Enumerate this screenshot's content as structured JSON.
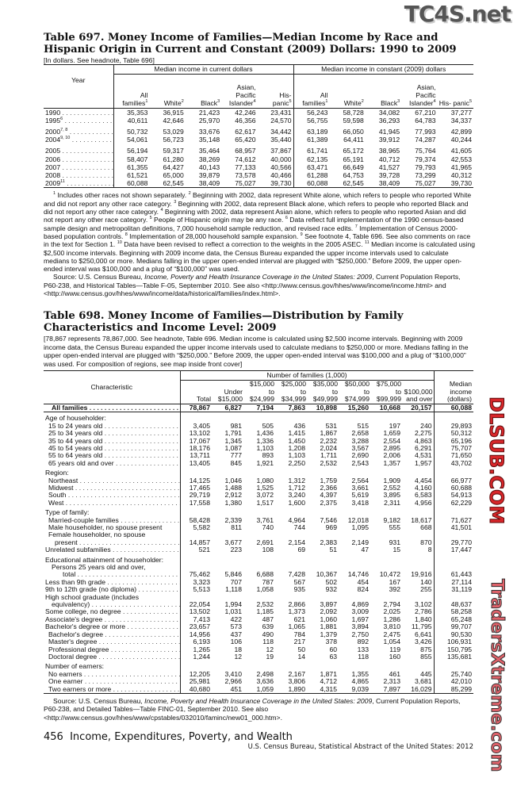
{
  "watermarks": {
    "top": "TC4S.net",
    "middle": "DLSUB.COM",
    "bottom": "TradersXtreme.com"
  },
  "t697": {
    "title": "Table 697. Money Income of Families—Median Income by Race and Hispanic Origin in Current and Constant (2009) Dollars: 1990 to 2009",
    "headnote": "[In dollars. See headnote, Table 696]",
    "year_header": "Year",
    "group_current": "Median income in current dollars",
    "group_constant": "Median income in constant (2009) dollars",
    "columns": [
      {
        "label": "All families",
        "sup": "1"
      },
      {
        "label": "White",
        "sup": "2"
      },
      {
        "label": "Black",
        "sup": "3"
      },
      {
        "label": "Asian, Pacific Islander",
        "sup": "4"
      },
      {
        "label": "His- panic",
        "sup": "5"
      },
      {
        "label": "All families",
        "sup": "1"
      },
      {
        "label": "White",
        "sup": "2"
      },
      {
        "label": "Black",
        "sup": "3"
      },
      {
        "label": "Asian, Pacific Islander",
        "sup": "4"
      },
      {
        "label": "His- panic",
        "sup": "5"
      }
    ],
    "rows": [
      {
        "year": "1990",
        "sup": "",
        "values": [
          "35,353",
          "36,915",
          "21,423",
          "42,246",
          "23,431",
          "56,243",
          "58,728",
          "34,082",
          "67,210",
          "37,277"
        ]
      },
      {
        "year": "1995",
        "sup": "6",
        "values": [
          "40,611",
          "42,646",
          "25,970",
          "46,356",
          "24,570",
          "56,755",
          "59,598",
          "36,293",
          "64,783",
          "34,337"
        ]
      },
      {
        "year": "2000",
        "sup": "7, 8",
        "gap": true,
        "values": [
          "50,732",
          "53,029",
          "33,676",
          "62,617",
          "34,442",
          "63,189",
          "66,050",
          "41,945",
          "77,993",
          "42,899"
        ]
      },
      {
        "year": "2004",
        "sup": "9, 10",
        "values": [
          "54,061",
          "56,723",
          "35,148",
          "65,420",
          "35,440",
          "61,389",
          "64,411",
          "39,912",
          "74,287",
          "40,244"
        ]
      },
      {
        "year": "2005",
        "sup": "",
        "gap": true,
        "values": [
          "56,194",
          "59,317",
          "35,464",
          "68,957",
          "37,867",
          "61,741",
          "65,172",
          "38,965",
          "75,764",
          "41,605"
        ]
      },
      {
        "year": "2006",
        "sup": "",
        "values": [
          "58,407",
          "61,280",
          "38,269",
          "74,612",
          "40,000",
          "62,135",
          "65,191",
          "40,712",
          "79,374",
          "42,553"
        ]
      },
      {
        "year": "2007",
        "sup": "",
        "values": [
          "61,355",
          "64,427",
          "40,143",
          "77,133",
          "40,566",
          "63,471",
          "66,649",
          "41,527",
          "79,793",
          "41,965"
        ]
      },
      {
        "year": "2008",
        "sup": "",
        "values": [
          "61,521",
          "65,000",
          "39,879",
          "73,578",
          "40,466",
          "61,288",
          "64,753",
          "39,728",
          "73,299",
          "40,312"
        ]
      },
      {
        "year": "2009",
        "sup": "11",
        "values": [
          "60,088",
          "62,545",
          "38,409",
          "75,027",
          "39,730",
          "60,088",
          "62,545",
          "38,409",
          "75,027",
          "39,730"
        ]
      }
    ],
    "footnotes": [
      {
        "s": "1"
      },
      {
        "t": " Includes other races not shown separately. "
      },
      {
        "s": "2"
      },
      {
        "t": " Beginning with 2002, data represent White alone, which refers to people who reported White and did not report any other race category. "
      },
      {
        "s": "3"
      },
      {
        "t": " Beginning with 2002, data represent Black alone, which refers to people who reported Black and did not report any other race category. "
      },
      {
        "s": "4"
      },
      {
        "t": " Beginning with 2002, data represent Asian alone, which refers to people who reported Asian and did not report any other race category. "
      },
      {
        "s": "5"
      },
      {
        "t": " People of Hispanic origin may be any race. "
      },
      {
        "s": "6"
      },
      {
        "t": " Data reflect full implementation of the 1990 census-based sample design and metropolitan definitions, 7,000 household sample reduction, and revised race edits. "
      },
      {
        "s": "7"
      },
      {
        "t": " Implementation of Census 2000-based population controls. "
      },
      {
        "s": "8"
      },
      {
        "t": " Implementation of 28,000 household sample expansion. "
      },
      {
        "s": "9"
      },
      {
        "t": " See footnote 4, Table 696. See also comments on race in the text for Section 1. "
      },
      {
        "s": "10"
      },
      {
        "t": " Data have been revised to reflect a correction to the weights in the 2005 ASEC. "
      },
      {
        "s": "11"
      },
      {
        "t": " Median income is calculated using $2,500 income intervals. Beginning with 2009 income data, the Census Bureau expanded the upper income intervals used to calculate medians to $250,000 or more. Medians falling in the upper open-ended interval are plugged with “$250,000.” Before 2009, the upper open-ended interval was $100,000 and a plug of “$100,000” was used."
      }
    ],
    "source": [
      {
        "t": "Source: U.S. Census Bureau, "
      },
      {
        "i": "Income, Poverty and Health Insurance Coverage in the United States: 2009"
      },
      {
        "t": ", Current Population Reports,  P60-238, and Historical Tables—Table F-05, September 2010. See also <http://www.census.gov/hhes/www/income/income.html> and <http://www.census.gov/hhes/www/income/data/historical/families/index.html>."
      }
    ]
  },
  "t698": {
    "title": "Table 698. Money Income of Families—Distribution by Family Characteristics and Income Level: 2009",
    "headnote": "[78,867 represents 78,867,000. See headnote, Table 696. Median income is calculated using $2,500 income intervals. Beginning with 2009 income data, the Census Bureau expanded the upper income intervals used to calculate medians to $250,000 or more. Medians falling in the upper open-ended interval are plugged with “$250,000.” Before 2009, the upper open-ended interval was $100,000 and a plug of “$100,000” was used. For composition of regions, see map inside front cover]",
    "char_header": "Characteristic",
    "group_header": "Number of families (1,000)",
    "columns": [
      "Total",
      "Under $15,000",
      "$15,000 to $24,999",
      "$25,000 to $34,999",
      "$35,000 to $49,999",
      "$50,000 to $74,999",
      "$75,000 to $99,999",
      "$100,000 and over"
    ],
    "median_header": "Median income (dollars)",
    "all": {
      "label": "All families",
      "values": [
        "78,867",
        "6,827",
        "7,194",
        "7,863",
        "10,898",
        "15,260",
        "10,668",
        "20,157",
        "60,088"
      ]
    },
    "sections": [
      {
        "heading": [
          "Age of householder:"
        ],
        "rows": [
          {
            "label": [
              "15 to 24 years old"
            ],
            "values": [
              "3,405",
              "981",
              "505",
              "436",
              "531",
              "515",
              "197",
              "240",
              "29,893"
            ]
          },
          {
            "label": [
              "25 to 34 years old"
            ],
            "values": [
              "13,102",
              "1,791",
              "1,436",
              "1,415",
              "1,867",
              "2,658",
              "1,659",
              "2,275",
              "50,312"
            ]
          },
          {
            "label": [
              "35 to 44 years old"
            ],
            "values": [
              "17,067",
              "1,345",
              "1,336",
              "1,450",
              "2,232",
              "3,288",
              "2,554",
              "4,863",
              "65,196"
            ]
          },
          {
            "label": [
              "45 to 54 years old"
            ],
            "values": [
              "18,176",
              "1,087",
              "1,103",
              "1,208",
              "2,024",
              "3,567",
              "2,895",
              "6,291",
              "75,707"
            ]
          },
          {
            "label": [
              "55 to 64 years old"
            ],
            "values": [
              "13,711",
              "777",
              "893",
              "1,103",
              "1,711",
              "2,690",
              "2,006",
              "4,531",
              "71,650"
            ]
          },
          {
            "label": [
              "65 years old and over"
            ],
            "values": [
              "13,405",
              "845",
              "1,921",
              "2,250",
              "2,532",
              "2,543",
              "1,357",
              "1,957",
              "43,702"
            ]
          }
        ]
      },
      {
        "heading": [
          "Region:"
        ],
        "rows": [
          {
            "label": [
              "Northeast"
            ],
            "values": [
              "14,125",
              "1,046",
              "1,080",
              "1,312",
              "1,759",
              "2,564",
              "1,909",
              "4,454",
              "66,977"
            ]
          },
          {
            "label": [
              "Midwest"
            ],
            "values": [
              "17,465",
              "1,488",
              "1,525",
              "1,712",
              "2,366",
              "3,661",
              "2,552",
              "4,160",
              "60,688"
            ]
          },
          {
            "label": [
              "South"
            ],
            "values": [
              "29,719",
              "2,912",
              "3,072",
              "3,240",
              "4,397",
              "5,619",
              "3,895",
              "6,583",
              "54,913"
            ]
          },
          {
            "label": [
              "West"
            ],
            "values": [
              "17,558",
              "1,380",
              "1,517",
              "1,600",
              "2,375",
              "3,418",
              "2,311",
              "4,956",
              "62,229"
            ]
          }
        ]
      },
      {
        "heading": [
          "Type of family:"
        ],
        "rows": [
          {
            "label": [
              "Married-couple families"
            ],
            "values": [
              "58,428",
              "2,339",
              "3,761",
              "4,964",
              "7,546",
              "12,018",
              "9,182",
              "18,617",
              "71,627"
            ]
          },
          {
            "label": [
              "Male householder, no spouse present"
            ],
            "nodots": true,
            "values": [
              "5,582",
              "811",
              "740",
              "744",
              "969",
              "1,095",
              "555",
              "668",
              "41,501"
            ]
          },
          {
            "label": [
              "Female householder, no spouse",
              "present"
            ],
            "values": [
              "14,857",
              "3,677",
              "2,691",
              "2,154",
              "2,383",
              "2,149",
              "931",
              "870",
              "29,770"
            ]
          },
          {
            "label": [
              "Unrelated subfamilies"
            ],
            "outdent": true,
            "values": [
              "521",
              "223",
              "108",
              "69",
              "51",
              "47",
              "15",
              "8",
              "17,447"
            ]
          }
        ]
      },
      {
        "heading": [
          "Educational attainment of householder:",
          "Persons 25 years old and over,"
        ],
        "rows": [
          {
            "label": [
              "total"
            ],
            "deep": true,
            "values": [
              "75,462",
              "5,846",
              "6,688",
              "7,428",
              "10,367",
              "14,746",
              "10,472",
              "19,916",
              "61,443"
            ]
          },
          {
            "label": [
              "Less than 9th grade"
            ],
            "outdent": true,
            "values": [
              "3,323",
              "707",
              "787",
              "567",
              "502",
              "454",
              "167",
              "140",
              "27,114"
            ]
          },
          {
            "label": [
              "9th to 12th grade (no diploma)"
            ],
            "outdent": true,
            "values": [
              "5,513",
              "1,118",
              "1,058",
              "935",
              "932",
              "824",
              "392",
              "255",
              "31,119"
            ]
          },
          {
            "label": [
              "High school graduate (includes",
              "equivalency)"
            ],
            "outdent": true,
            "values": [
              "22,054",
              "1,994",
              "2,532",
              "2,866",
              "3,897",
              "4,869",
              "2,794",
              "3,102",
              "48,637"
            ]
          },
          {
            "label": [
              "Some college, no degree"
            ],
            "outdent": true,
            "values": [
              "13,502",
              "1,031",
              "1,185",
              "1,373",
              "2,092",
              "3,009",
              "2,025",
              "2,786",
              "58,258"
            ]
          },
          {
            "label": [
              "Associate's degree"
            ],
            "outdent": true,
            "values": [
              "7,413",
              "422",
              "487",
              "621",
              "1,060",
              "1,697",
              "1,286",
              "1,840",
              "65,248"
            ]
          },
          {
            "label": [
              "Bachelor's degree or more"
            ],
            "outdent": true,
            "values": [
              "23,657",
              "573",
              "639",
              "1,065",
              "1,881",
              "3,894",
              "3,810",
              "11,795",
              "99,707"
            ]
          },
          {
            "label": [
              "Bachelor's degree"
            ],
            "values": [
              "14,956",
              "437",
              "490",
              "784",
              "1,379",
              "2,750",
              "2,475",
              "6,641",
              "90,530"
            ]
          },
          {
            "label": [
              "Master's degree"
            ],
            "values": [
              "6,193",
              "106",
              "118",
              "217",
              "378",
              "892",
              "1,054",
              "3,426",
              "106,931"
            ]
          },
          {
            "label": [
              "Professional degree"
            ],
            "values": [
              "1,265",
              "18",
              "12",
              "50",
              "60",
              "133",
              "119",
              "875",
              "150,795"
            ]
          },
          {
            "label": [
              "Doctoral degree"
            ],
            "values": [
              "1,244",
              "12",
              "19",
              "14",
              "63",
              "118",
              "160",
              "855",
              "135,681"
            ]
          }
        ]
      },
      {
        "heading": [
          "Number of earners:"
        ],
        "rows": [
          {
            "label": [
              "No earners"
            ],
            "values": [
              "12,205",
              "3,410",
              "2,498",
              "2,167",
              "1,871",
              "1,355",
              "461",
              "445",
              "25,740"
            ]
          },
          {
            "label": [
              "One earner"
            ],
            "values": [
              "25,981",
              "2,966",
              "3,636",
              "3,806",
              "4,712",
              "4,865",
              "2,313",
              "3,681",
              "42,010"
            ]
          },
          {
            "label": [
              "Two earners or more"
            ],
            "values": [
              "40,680",
              "451",
              "1,059",
              "1,890",
              "4,315",
              "9,039",
              "7,897",
              "16,029",
              "85,299"
            ]
          }
        ]
      }
    ],
    "source": [
      {
        "t": "Source: U.S. Census Bureau, "
      },
      {
        "i": "Income, Poverty and Health Insurance Coverage in the United States: 2009"
      },
      {
        "t": ", Current Population Reports, P60-238, and Detailed Tables—Table FINC-01, September 2010. See also <http://www.census.gov/hhes/www/cpstables/032010/faminc/new01_000.htm>."
      }
    ]
  },
  "footer": {
    "page_number": "456",
    "section": "Income, Expenditures, Poverty, and Wealth",
    "publication": "U.S. Census Bureau, Statistical Abstract of the United States: 2012"
  }
}
